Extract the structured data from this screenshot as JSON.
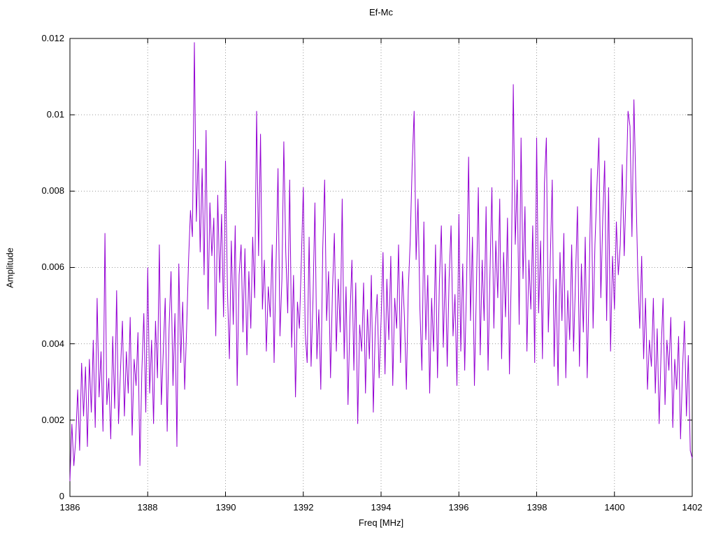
{
  "chart": {
    "title": "Ef-Mc",
    "xlabel": "Freq [MHz]",
    "ylabel": "Amplitude"
  },
  "chart_data": {
    "type": "line",
    "title": "Ef-Mc",
    "xlabel": "Freq [MHz]",
    "ylabel": "Amplitude",
    "xlim": [
      1386,
      1402
    ],
    "ylim": [
      0,
      0.012
    ],
    "x_ticks": [
      1386,
      1388,
      1390,
      1392,
      1394,
      1396,
      1398,
      1400,
      1402
    ],
    "y_ticks": [
      0,
      0.002,
      0.004,
      0.006,
      0.008,
      0.01,
      0.012
    ],
    "y_tick_labels": [
      "0",
      "0.002",
      "0.004",
      "0.006",
      "0.008",
      "0.01",
      "0.012"
    ],
    "grid": true,
    "legend": "none",
    "line_color": "#9400d3",
    "x_start": 1386,
    "x_step": 0.05,
    "values": [
      0.0004,
      0.0019,
      0.0008,
      0.0015,
      0.0028,
      0.0012,
      0.0035,
      0.0021,
      0.0034,
      0.0013,
      0.0036,
      0.0022,
      0.0041,
      0.0018,
      0.0052,
      0.0026,
      0.0038,
      0.0017,
      0.0069,
      0.0024,
      0.0031,
      0.0015,
      0.0042,
      0.0023,
      0.0054,
      0.0019,
      0.0033,
      0.0046,
      0.0021,
      0.0038,
      0.0027,
      0.0047,
      0.0016,
      0.0036,
      0.0029,
      0.0043,
      0.0008,
      0.0033,
      0.0048,
      0.0022,
      0.006,
      0.0027,
      0.0041,
      0.0019,
      0.0046,
      0.0031,
      0.0066,
      0.0024,
      0.0038,
      0.0052,
      0.0017,
      0.0044,
      0.0059,
      0.0029,
      0.0048,
      0.0013,
      0.0061,
      0.0035,
      0.0051,
      0.0028,
      0.0044,
      0.0062,
      0.0075,
      0.0068,
      0.0119,
      0.0072,
      0.0091,
      0.0064,
      0.0086,
      0.0058,
      0.0096,
      0.0049,
      0.0077,
      0.0063,
      0.0073,
      0.0042,
      0.0079,
      0.0056,
      0.0074,
      0.0047,
      0.0088,
      0.0054,
      0.0036,
      0.0067,
      0.0045,
      0.0071,
      0.0029,
      0.0058,
      0.0066,
      0.0043,
      0.0065,
      0.0037,
      0.0059,
      0.0044,
      0.0068,
      0.0052,
      0.0101,
      0.0063,
      0.0095,
      0.0049,
      0.0062,
      0.0038,
      0.0055,
      0.0047,
      0.0066,
      0.0035,
      0.0061,
      0.0086,
      0.0042,
      0.0057,
      0.0093,
      0.0064,
      0.0048,
      0.0083,
      0.0039,
      0.0058,
      0.0026,
      0.0051,
      0.0044,
      0.0062,
      0.0081,
      0.0043,
      0.0035,
      0.0068,
      0.0034,
      0.0052,
      0.0077,
      0.0036,
      0.0049,
      0.0028,
      0.0065,
      0.0083,
      0.0046,
      0.0059,
      0.0031,
      0.0054,
      0.0069,
      0.0038,
      0.0057,
      0.0043,
      0.0078,
      0.0036,
      0.0055,
      0.0024,
      0.0047,
      0.0062,
      0.0033,
      0.0056,
      0.0019,
      0.0045,
      0.0038,
      0.0056,
      0.0027,
      0.0049,
      0.0036,
      0.0058,
      0.0022,
      0.0044,
      0.0053,
      0.0031,
      0.0046,
      0.0064,
      0.0032,
      0.0057,
      0.0041,
      0.0063,
      0.0029,
      0.0052,
      0.0044,
      0.0066,
      0.0035,
      0.0059,
      0.0047,
      0.0028,
      0.0054,
      0.0067,
      0.0087,
      0.0101,
      0.0062,
      0.0078,
      0.0049,
      0.0033,
      0.0072,
      0.0041,
      0.0058,
      0.0027,
      0.0052,
      0.0038,
      0.0066,
      0.0031,
      0.0056,
      0.0071,
      0.0039,
      0.0061,
      0.0034,
      0.0057,
      0.0071,
      0.0042,
      0.0053,
      0.0029,
      0.0074,
      0.0038,
      0.0061,
      0.0033,
      0.0057,
      0.0089,
      0.0046,
      0.0068,
      0.0029,
      0.0054,
      0.0081,
      0.0037,
      0.0062,
      0.0046,
      0.0076,
      0.0033,
      0.0058,
      0.0081,
      0.0044,
      0.0067,
      0.0052,
      0.0078,
      0.0036,
      0.0064,
      0.0047,
      0.0073,
      0.0032,
      0.0059,
      0.0108,
      0.0066,
      0.0083,
      0.0045,
      0.0094,
      0.0057,
      0.0076,
      0.0038,
      0.0062,
      0.0049,
      0.0071,
      0.0035,
      0.0094,
      0.0048,
      0.0067,
      0.0036,
      0.0082,
      0.0094,
      0.0043,
      0.0062,
      0.0083,
      0.0034,
      0.0057,
      0.0029,
      0.0064,
      0.0046,
      0.0069,
      0.0031,
      0.0054,
      0.0041,
      0.0066,
      0.0038,
      0.0057,
      0.0076,
      0.0034,
      0.0061,
      0.0043,
      0.0068,
      0.0031,
      0.0056,
      0.0086,
      0.0044,
      0.0066,
      0.0081,
      0.0094,
      0.0052,
      0.0073,
      0.0088,
      0.0046,
      0.0081,
      0.0038,
      0.0063,
      0.0049,
      0.0072,
      0.0058,
      0.0066,
      0.0087,
      0.0063,
      0.008,
      0.0101,
      0.0097,
      0.0068,
      0.0104,
      0.0082,
      0.0059,
      0.0044,
      0.0063,
      0.0036,
      0.0052,
      0.0028,
      0.0041,
      0.0034,
      0.0052,
      0.0027,
      0.0044,
      0.0019,
      0.0038,
      0.0052,
      0.0024,
      0.0041,
      0.0033,
      0.0047,
      0.0018,
      0.0036,
      0.0028,
      0.0042,
      0.0015,
      0.0033,
      0.0046,
      0.0021,
      0.0037,
      0.0012,
      0.001
    ]
  }
}
